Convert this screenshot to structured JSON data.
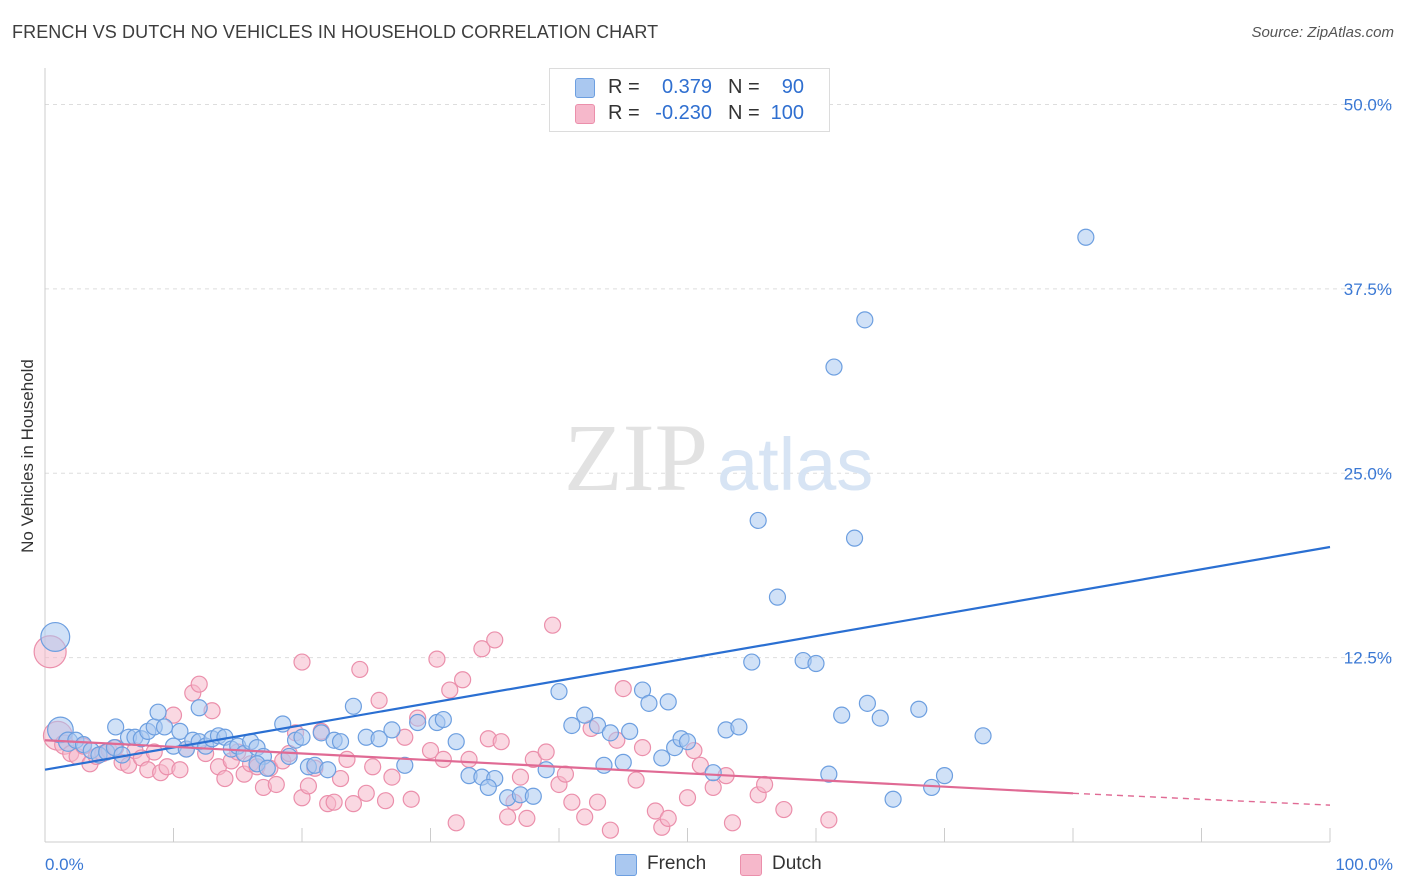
{
  "title": "FRENCH VS DUTCH NO VEHICLES IN HOUSEHOLD CORRELATION CHART",
  "source": "Source: ZipAtlas.com",
  "watermark": {
    "zip": "ZIP",
    "atlas": "atlas"
  },
  "legend": {
    "french": {
      "r_label": "R =",
      "r_value": "0.379",
      "n_label": "N =",
      "n_value": "90"
    },
    "dutch": {
      "r_label": "R =",
      "r_value": "-0.230",
      "n_label": "N =",
      "n_value": "100"
    }
  },
  "colors": {
    "french_fill": "#aac8f0",
    "french_stroke": "#6d9fe0",
    "french_line": "#2a6fd2",
    "dutch_fill": "#f6b8cb",
    "dutch_stroke": "#eb8fab",
    "dutch_line": "#e06a94",
    "axis_text": "#3a78d4",
    "grid": "#dddddd"
  },
  "chart_data": {
    "type": "scatter",
    "title": "FRENCH VS DUTCH NO VEHICLES IN HOUSEHOLD CORRELATION CHART",
    "xlabel": "",
    "ylabel": "No Vehicles in Household",
    "xlim": [
      0,
      100
    ],
    "ylim": [
      0,
      52
    ],
    "x_tick_labels": [
      "0.0%",
      "100.0%"
    ],
    "y_ticks": [
      12.5,
      25.0,
      37.5,
      50.0
    ],
    "y_tick_labels": [
      "12.5%",
      "25.0%",
      "37.5%",
      "50.0%"
    ],
    "grid": "horizontal dashed",
    "legend_position": "top-center",
    "series": [
      {
        "name": "French",
        "trend": {
          "x": [
            0,
            100
          ],
          "y": [
            4.9,
            20.0
          ]
        },
        "points": [
          [
            0.8,
            13.9,
            1.8
          ],
          [
            1.2,
            7.6,
            1.6
          ],
          [
            1.8,
            6.8,
            1.2
          ],
          [
            2.4,
            6.9,
            1
          ],
          [
            3.0,
            6.6,
            1
          ],
          [
            3.6,
            6.2,
            1
          ],
          [
            4.2,
            5.9,
            1
          ],
          [
            4.8,
            6.1,
            1
          ],
          [
            5.4,
            6.4,
            1
          ],
          [
            6.0,
            5.9,
            1
          ],
          [
            5.5,
            7.8,
            1
          ],
          [
            6.5,
            7.1,
            1
          ],
          [
            7.0,
            7.1,
            1
          ],
          [
            7.5,
            7.0,
            1
          ],
          [
            8.0,
            7.5,
            1
          ],
          [
            8.5,
            7.8,
            1
          ],
          [
            8.8,
            8.8,
            1
          ],
          [
            9.3,
            7.8,
            1
          ],
          [
            10.0,
            6.5,
            1
          ],
          [
            10.5,
            7.5,
            1
          ],
          [
            11.0,
            6.3,
            1
          ],
          [
            11.5,
            6.9,
            1
          ],
          [
            12.0,
            6.8,
            1
          ],
          [
            12.5,
            6.5,
            1
          ],
          [
            13.0,
            7.0,
            1
          ],
          [
            13.5,
            7.2,
            1
          ],
          [
            14.0,
            7.1,
            1
          ],
          [
            14.5,
            6.3,
            1
          ],
          [
            15.0,
            6.5,
            1
          ],
          [
            15.5,
            6.0,
            1
          ],
          [
            16.0,
            6.8,
            1
          ],
          [
            16.5,
            6.4,
            1
          ],
          [
            17.0,
            5.8,
            1
          ],
          [
            12.0,
            9.1,
            1
          ],
          [
            16.5,
            5.3,
            1
          ],
          [
            17.3,
            5.0,
            1
          ],
          [
            18.5,
            8.0,
            1
          ],
          [
            19.0,
            5.8,
            1
          ],
          [
            19.5,
            6.9,
            1
          ],
          [
            20.0,
            7.1,
            1
          ],
          [
            20.5,
            5.1,
            1
          ],
          [
            21.0,
            5.2,
            1
          ],
          [
            21.5,
            7.4,
            1
          ],
          [
            22.0,
            4.9,
            1
          ],
          [
            22.5,
            6.9,
            1
          ],
          [
            23.0,
            6.8,
            1
          ],
          [
            24.0,
            9.2,
            1
          ],
          [
            25.0,
            7.1,
            1
          ],
          [
            26.0,
            7.0,
            1
          ],
          [
            27.0,
            7.6,
            1
          ],
          [
            28.0,
            5.2,
            1
          ],
          [
            29.0,
            8.1,
            1
          ],
          [
            30.5,
            8.1,
            1
          ],
          [
            31.0,
            8.3,
            1
          ],
          [
            32.0,
            6.8,
            1
          ],
          [
            33.0,
            4.5,
            1
          ],
          [
            34.0,
            4.4,
            1
          ],
          [
            35.0,
            4.3,
            1
          ],
          [
            36.0,
            3.0,
            1
          ],
          [
            37.0,
            3.2,
            1
          ],
          [
            38.0,
            3.1,
            1
          ],
          [
            39.0,
            4.9,
            1
          ],
          [
            40.0,
            10.2,
            1
          ],
          [
            41.0,
            7.9,
            1
          ],
          [
            42.0,
            8.6,
            1
          ],
          [
            43.0,
            7.9,
            1
          ],
          [
            43.5,
            5.2,
            1
          ],
          [
            44.0,
            7.4,
            1
          ],
          [
            45.0,
            5.4,
            1
          ],
          [
            45.5,
            7.5,
            1
          ],
          [
            46.5,
            10.3,
            1
          ],
          [
            47.0,
            9.4,
            1
          ],
          [
            48.0,
            5.7,
            1
          ],
          [
            48.5,
            9.5,
            1
          ],
          [
            49.0,
            6.4,
            1
          ],
          [
            49.5,
            7.0,
            1
          ],
          [
            50.0,
            6.8,
            1
          ],
          [
            52.0,
            4.7,
            1
          ],
          [
            53.0,
            7.6,
            1
          ],
          [
            54.0,
            7.8,
            1
          ],
          [
            55.0,
            12.2,
            1
          ],
          [
            55.5,
            21.8,
            1
          ],
          [
            57.0,
            16.6,
            1
          ],
          [
            59.0,
            12.3,
            1
          ],
          [
            60.0,
            12.1,
            1
          ],
          [
            61.0,
            4.6,
            1
          ],
          [
            62.0,
            8.6,
            1
          ],
          [
            63.0,
            20.6,
            1
          ],
          [
            64.0,
            9.4,
            1
          ],
          [
            65.0,
            8.4,
            1
          ],
          [
            66.0,
            2.9,
            1
          ],
          [
            68.0,
            9.0,
            1
          ],
          [
            69.0,
            3.7,
            1
          ],
          [
            70.0,
            4.5,
            1
          ],
          [
            73.0,
            7.2,
            1
          ],
          [
            81.0,
            41.0,
            1
          ],
          [
            61.4,
            32.2,
            1
          ],
          [
            63.8,
            35.4,
            1
          ],
          [
            34.5,
            3.7,
            1
          ]
        ]
      },
      {
        "name": "Dutch",
        "trend": {
          "x": [
            0,
            80
          ],
          "y": [
            6.9,
            3.3
          ]
        },
        "trend_extension": {
          "x": [
            80,
            100
          ],
          "y": [
            3.3,
            2.5
          ]
        },
        "points": [
          [
            0.4,
            12.9,
            2.0
          ],
          [
            1.0,
            7.2,
            1.8
          ],
          [
            1.5,
            6.6,
            1.2
          ],
          [
            2.0,
            6.0,
            1
          ],
          [
            2.5,
            5.8,
            1
          ],
          [
            3.0,
            6.5,
            1
          ],
          [
            3.5,
            5.3,
            1
          ],
          [
            4.0,
            5.8,
            1
          ],
          [
            4.5,
            6.0,
            1
          ],
          [
            5.0,
            6.2,
            1
          ],
          [
            5.5,
            6.4,
            1
          ],
          [
            6.0,
            5.4,
            1
          ],
          [
            6.5,
            5.2,
            1
          ],
          [
            7.0,
            6.2,
            1
          ],
          [
            7.5,
            5.7,
            1
          ],
          [
            8.0,
            4.9,
            1
          ],
          [
            8.5,
            6.1,
            1
          ],
          [
            9.0,
            4.7,
            1
          ],
          [
            9.5,
            5.1,
            1
          ],
          [
            10.0,
            8.6,
            1
          ],
          [
            10.5,
            4.9,
            1
          ],
          [
            11.0,
            6.3,
            1
          ],
          [
            11.5,
            10.1,
            1
          ],
          [
            12.0,
            10.7,
            1
          ],
          [
            12.5,
            6.0,
            1
          ],
          [
            13.0,
            8.9,
            1
          ],
          [
            13.5,
            5.1,
            1
          ],
          [
            14.0,
            4.3,
            1
          ],
          [
            14.5,
            5.5,
            1
          ],
          [
            15.0,
            6.1,
            1
          ],
          [
            15.5,
            4.6,
            1
          ],
          [
            16.0,
            5.3,
            1
          ],
          [
            16.5,
            5.1,
            1
          ],
          [
            17.0,
            3.7,
            1
          ],
          [
            17.5,
            5.0,
            1
          ],
          [
            18.0,
            3.9,
            1
          ],
          [
            18.5,
            5.5,
            1
          ],
          [
            19.0,
            6.0,
            1
          ],
          [
            19.5,
            7.4,
            1
          ],
          [
            20.0,
            3.0,
            1
          ],
          [
            20.5,
            3.8,
            1
          ],
          [
            21.0,
            5.0,
            1
          ],
          [
            21.5,
            7.5,
            1
          ],
          [
            22.0,
            2.6,
            1
          ],
          [
            22.5,
            2.7,
            1
          ],
          [
            23.0,
            4.3,
            1
          ],
          [
            23.5,
            5.6,
            1
          ],
          [
            24.0,
            2.6,
            1
          ],
          [
            24.5,
            11.7,
            1
          ],
          [
            25.0,
            3.3,
            1
          ],
          [
            25.5,
            5.1,
            1
          ],
          [
            26.0,
            9.6,
            1
          ],
          [
            26.5,
            2.8,
            1
          ],
          [
            27.0,
            4.4,
            1
          ],
          [
            28.0,
            7.1,
            1
          ],
          [
            28.5,
            2.9,
            1
          ],
          [
            29.0,
            8.4,
            1
          ],
          [
            30.0,
            6.2,
            1
          ],
          [
            30.5,
            12.4,
            1
          ],
          [
            31.0,
            5.6,
            1
          ],
          [
            31.5,
            10.3,
            1
          ],
          [
            32.0,
            1.3,
            1
          ],
          [
            32.5,
            11.0,
            1
          ],
          [
            33.0,
            5.6,
            1
          ],
          [
            34.0,
            13.1,
            1
          ],
          [
            34.5,
            7.0,
            1
          ],
          [
            35.0,
            13.7,
            1
          ],
          [
            35.5,
            6.8,
            1
          ],
          [
            36.0,
            1.7,
            1
          ],
          [
            36.5,
            2.7,
            1
          ],
          [
            37.0,
            4.4,
            1
          ],
          [
            37.5,
            1.6,
            1
          ],
          [
            38.0,
            5.6,
            1
          ],
          [
            39.0,
            6.1,
            1
          ],
          [
            39.5,
            14.7,
            1
          ],
          [
            40.0,
            3.9,
            1
          ],
          [
            40.5,
            4.6,
            1
          ],
          [
            41.0,
            2.7,
            1
          ],
          [
            42.0,
            1.7,
            1
          ],
          [
            42.5,
            7.7,
            1
          ],
          [
            43.0,
            2.7,
            1
          ],
          [
            44.0,
            0.8,
            1
          ],
          [
            44.5,
            6.9,
            1
          ],
          [
            45.0,
            10.4,
            1
          ],
          [
            46.0,
            4.2,
            1
          ],
          [
            46.5,
            6.4,
            1
          ],
          [
            47.5,
            2.1,
            1
          ],
          [
            48.0,
            1.0,
            1
          ],
          [
            48.5,
            1.6,
            1
          ],
          [
            50.0,
            3.0,
            1
          ],
          [
            50.5,
            6.2,
            1
          ],
          [
            52.0,
            3.7,
            1
          ],
          [
            53.0,
            4.5,
            1
          ],
          [
            53.5,
            1.3,
            1
          ],
          [
            55.5,
            3.2,
            1
          ],
          [
            57.5,
            2.2,
            1
          ],
          [
            61.0,
            1.5,
            1
          ],
          [
            56.0,
            3.9,
            1
          ],
          [
            51.0,
            5.2,
            1
          ],
          [
            20.0,
            12.2,
            1
          ]
        ]
      }
    ]
  },
  "bottom_legend": {
    "french": "French",
    "dutch": "Dutch"
  }
}
